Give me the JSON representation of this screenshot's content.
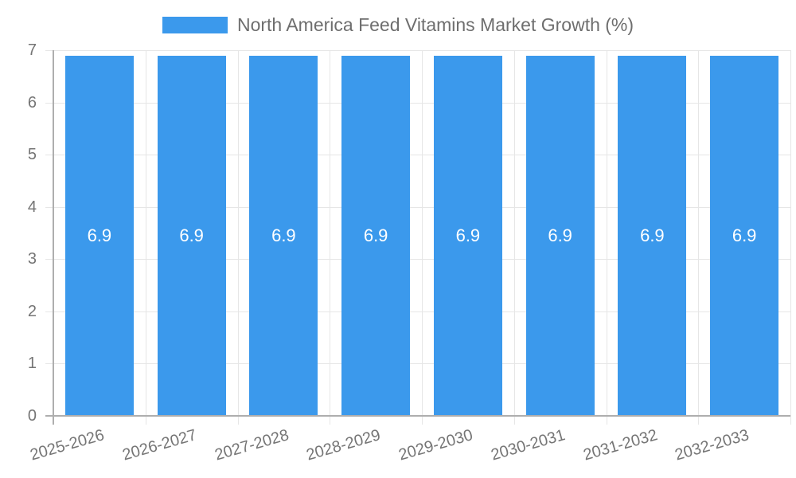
{
  "chart_data": {
    "type": "bar",
    "categories": [
      "2025-2026",
      "2026-2027",
      "2027-2028",
      "2028-2029",
      "2029-2030",
      "2030-2031",
      "2031-2032",
      "2032-2033"
    ],
    "series": [
      {
        "name": "North America Feed Vitamins Market Growth (%)",
        "values": [
          6.9,
          6.9,
          6.9,
          6.9,
          6.9,
          6.9,
          6.9,
          6.9
        ],
        "value_labels": [
          "6.9",
          "6.9",
          "6.9",
          "6.9",
          "6.9",
          "6.9",
          "6.9",
          "6.9"
        ]
      }
    ],
    "xlabel": "",
    "ylabel": "",
    "ylim": [
      0,
      7
    ],
    "yticks": [
      0,
      1,
      2,
      3,
      4,
      5,
      6,
      7
    ],
    "grid": true,
    "legend_position": "top",
    "colors": {
      "bar": "#3B99EC",
      "bar_value_text": "#ffffff",
      "gridline": "#e6e6e6",
      "axis_line": "#aeaeae",
      "tick_text": "#757575",
      "legend_text": "#6e6e6e",
      "background": "#ffffff"
    }
  }
}
